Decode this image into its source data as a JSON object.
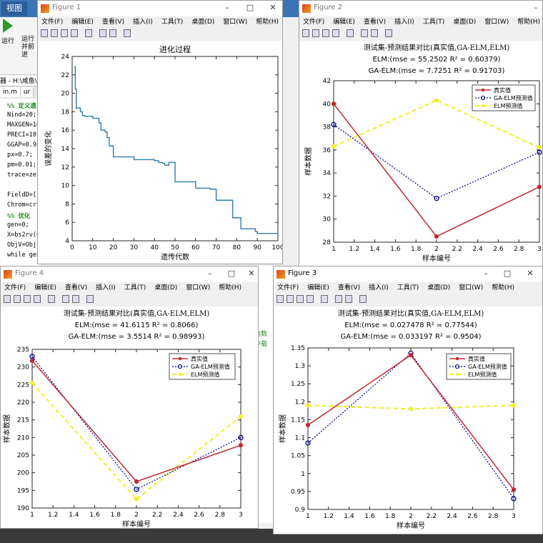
{
  "main": {
    "tab_label": "视图",
    "run_label": "运行",
    "run_advance_label": "运行并前进",
    "path": "器 - H:\\咸鱼\\G",
    "editor_tabs": [
      "in.m",
      "ur"
    ],
    "code_lines": [
      {
        "text": "%% 定义遗",
        "comment": true
      },
      {
        "text": "Nind=20;"
      },
      {
        "text": "MAXGEN=10"
      },
      {
        "text": "PRECI=10;"
      },
      {
        "text": "GGAP=0.95"
      },
      {
        "text": "px=0.7;"
      },
      {
        "text": "pm=0.01;"
      },
      {
        "text": "trace=zer"
      },
      {
        "text": ""
      },
      {
        "text": "FieldD=[r"
      },
      {
        "text": "Chrom=crt"
      },
      {
        "text": "%% 优化",
        "comment": true
      },
      {
        "text": "gen=0;"
      },
      {
        "text": "X=bs2rv(C"
      },
      {
        "text": "ObjV=Objf"
      },
      {
        "text": "while gen"
      }
    ],
    "command_window": [
      "始数",
      "中载"
    ]
  },
  "colors": {
    "true_line": "#c0282f",
    "ga_line": "#00008b",
    "elm_line": "#f0f020",
    "evo_line": "#2e7ea8"
  },
  "figures": [
    {
      "id": "fig1",
      "window_title": "Figure 1",
      "menu": [
        "文件(F)",
        "编辑(E)",
        "查看(V)",
        "插入(I)",
        "工具(T)",
        "桌面(D)",
        "窗口(W)",
        "帮助(H)"
      ],
      "chart_data": {
        "type": "line",
        "title": "进化过程",
        "xlabel": "遗传代数",
        "ylabel": "误差的变化",
        "xlim": [
          0,
          100
        ],
        "ylim": [
          4,
          24
        ],
        "xticks": [
          0,
          10,
          20,
          30,
          40,
          50,
          60,
          70,
          80,
          90,
          100
        ],
        "yticks": [
          4,
          6,
          8,
          10,
          12,
          14,
          16,
          18,
          20,
          22,
          24
        ],
        "series": [
          {
            "x": [
              1,
              1.5,
              2,
              3,
              4,
              5,
              6,
              8,
              10,
              12,
              13,
              14,
              15,
              16,
              17,
              18,
              20,
              22,
              25,
              30,
              35,
              38,
              40,
              42,
              44,
              45,
              46,
              47,
              50,
              55,
              60,
              65,
              67,
              70,
              75,
              77,
              78,
              80,
              82,
              85,
              87,
              89,
              90,
              95,
              100
            ],
            "y": [
              22.9,
              20.5,
              18.4,
              18.4,
              18.0,
              17.6,
              17.5,
              17.5,
              17.3,
              17.3,
              16.8,
              16.0,
              16.0,
              15.8,
              15.2,
              14.3,
              13.1,
              13.1,
              13.1,
              12.8,
              12.8,
              12.8,
              12.7,
              12.5,
              12.4,
              12.2,
              12.2,
              12.5,
              10.4,
              10.4,
              9.7,
              9.7,
              9.6,
              8.4,
              8.4,
              8.4,
              6.5,
              6.5,
              5.3,
              5.3,
              5.3,
              5.0,
              4.8,
              4.8,
              4.8
            ]
          }
        ]
      }
    },
    {
      "id": "fig2",
      "window_title": "Figure 2",
      "menu": [
        "文件(F)",
        "编辑(E)",
        "查看(V)",
        "插入(I)",
        "工具(T)",
        "桌面(D)",
        "窗口(W)",
        "帮助(H)"
      ],
      "chart_data": {
        "type": "line",
        "title": "测试集-预测结果对比(真实值,GA-ELM,ELM)",
        "subtitle_lines": [
          "ELM:(mse = 55.2502 R² = 0.60379)",
          "GA-ELM:(mse = 7.7251 R² = 0.91703)"
        ],
        "xlabel": "样本编号",
        "ylabel": "样本数据",
        "xlim": [
          1,
          3
        ],
        "ylim": [
          28,
          42
        ],
        "xticks": [
          "1",
          "1.2",
          "1.4",
          "1.6",
          "1.8",
          "2",
          "2.2",
          "2.4",
          "2.6",
          "2.8",
          "3"
        ],
        "yticks": [
          "28",
          "30",
          "32",
          "34",
          "36",
          "38",
          "40",
          "42"
        ],
        "legend": [
          "真实值",
          "GA-ELM预测值",
          "ELM预测值"
        ],
        "legend_position": "top-right",
        "x": [
          1,
          2,
          3
        ],
        "series": [
          {
            "name": "真实值",
            "values": [
              40.0,
              28.5,
              32.8
            ]
          },
          {
            "name": "GA-ELM预测值",
            "values": [
              38.2,
              31.8,
              35.8
            ]
          },
          {
            "name": "ELM预测值",
            "values": [
              36.3,
              40.3,
              36.2
            ]
          }
        ]
      }
    },
    {
      "id": "fig4",
      "window_title": "Figure 4",
      "menu": [
        "文件(F)",
        "编辑(E)",
        "查看(V)",
        "插入(I)",
        "工具(T)",
        "桌面(D)",
        "窗口(W)",
        "帮助(H)"
      ],
      "chart_data": {
        "type": "line",
        "title": "测试集-预测结果对比(真实值,GA-ELM,ELM)",
        "subtitle_lines": [
          "ELM:(mse = 41.6115 R² = 0.8066)",
          "GA-ELM:(mse = 3.5514 R² = 0.98993)"
        ],
        "xlabel": "样本编号",
        "ylabel": "样本数据",
        "xlim": [
          1,
          3
        ],
        "ylim": [
          190,
          235
        ],
        "xticks": [
          "1",
          "1.2",
          "1.4",
          "1.6",
          "1.8",
          "2",
          "2.2",
          "2.4",
          "2.6",
          "2.8",
          "3"
        ],
        "yticks": [
          "190",
          "195",
          "200",
          "205",
          "210",
          "215",
          "220",
          "225",
          "230",
          "235"
        ],
        "legend": [
          "真实值",
          "GA-ELM预测值",
          "ELM预测值"
        ],
        "legend_position": "top-right",
        "x": [
          1,
          2,
          3
        ],
        "series": [
          {
            "name": "真实值",
            "values": [
              231.8,
              197.5,
              207.8
            ]
          },
          {
            "name": "GA-ELM预测值",
            "values": [
              233.0,
              195.3,
              210.0
            ]
          },
          {
            "name": "ELM预测值",
            "values": [
              225.5,
              192.5,
              216.0
            ]
          }
        ]
      }
    },
    {
      "id": "fig3",
      "window_title": "Figure 3",
      "menu": [
        "文件(F)",
        "编辑(E)",
        "查看(V)",
        "插入(I)",
        "工具(T)",
        "桌面(D)",
        "窗口(W)",
        "帮助(H)"
      ],
      "chart_data": {
        "type": "line",
        "title": "测试集-预测结果对比(真实值,GA-ELM,ELM)",
        "subtitle_lines": [
          "ELM:(mse = 0.027478 R² = 0.77544)",
          "GA-ELM:(mse = 0.033197 R² = 0.9504)"
        ],
        "xlabel": "样本编号",
        "ylabel": "样本数据",
        "xlim": [
          1,
          3
        ],
        "ylim": [
          0.9,
          1.35
        ],
        "xticks": [
          "1",
          "1.2",
          "1.4",
          "1.6",
          "1.8",
          "2",
          "2.2",
          "2.4",
          "2.6",
          "2.8",
          "3"
        ],
        "yticks": [
          "0.9",
          "0.95",
          "1",
          "1.05",
          "1.1",
          "1.15",
          "1.2",
          "1.25",
          "1.3",
          "1.35"
        ],
        "legend": [
          "真实值",
          "GA-ELM预测值",
          "ELM预测值"
        ],
        "legend_position": "top-right",
        "x": [
          1,
          2,
          3
        ],
        "series": [
          {
            "name": "真实值",
            "values": [
              1.135,
              1.33,
              0.955
            ]
          },
          {
            "name": "GA-ELM预测值",
            "values": [
              1.085,
              1.335,
              0.93
            ]
          },
          {
            "name": "ELM预测值",
            "values": [
              1.19,
              1.18,
              1.19
            ]
          }
        ]
      }
    }
  ]
}
